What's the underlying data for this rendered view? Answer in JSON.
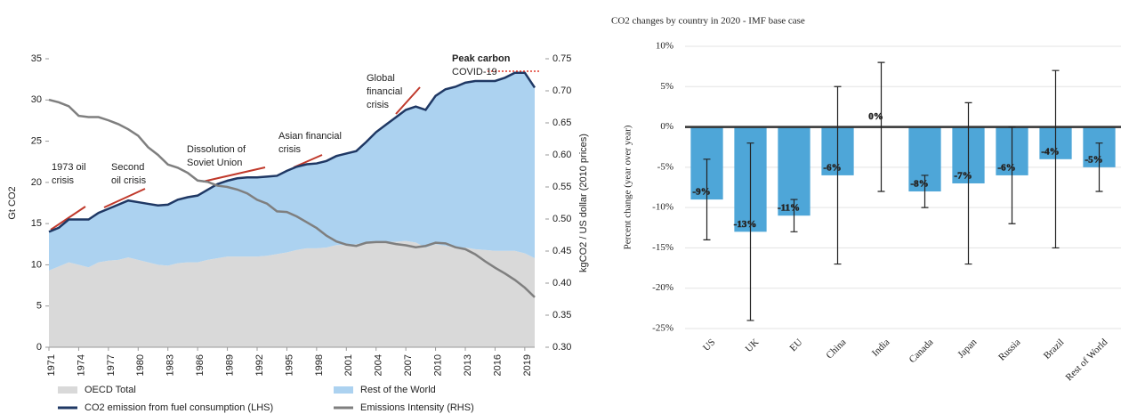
{
  "chart_data": [
    {
      "type": "area",
      "ylabel": "Gt CO2",
      "y2label": "kgCO2 / US dollar (2010 prices)",
      "categories": [
        "1971",
        null,
        null,
        "1974",
        null,
        null,
        "1977",
        null,
        null,
        "1980",
        null,
        null,
        "1983",
        null,
        null,
        "1986",
        null,
        null,
        "1989",
        null,
        null,
        "1992",
        null,
        null,
        "1995",
        null,
        null,
        "1998",
        null,
        null,
        "2001",
        null,
        null,
        "2004",
        null,
        null,
        "2007",
        null,
        null,
        "2010",
        null,
        null,
        "2013",
        null,
        null,
        "2016",
        null,
        null,
        "2019",
        null
      ],
      "ylim": [
        0,
        35
      ],
      "yticks": [
        0,
        5,
        10,
        15,
        20,
        25,
        30,
        35
      ],
      "y2lim": [
        0.3,
        0.75
      ],
      "y2ticks": [
        {
          "value": 0.3,
          "label": "0.30"
        },
        0.35,
        {
          "value": 0.4,
          "label": "0.40"
        },
        0.45,
        {
          "value": 0.5,
          "label": "0.50"
        },
        0.55,
        {
          "value": 0.6,
          "label": "0.60"
        },
        0.65,
        {
          "value": 0.7,
          "label": "0.70"
        },
        0.75
      ],
      "series": [
        {
          "name": "OECD Total",
          "kind": "area",
          "color": "#d9d9d9",
          "values": [
            9.3,
            9.8,
            10.3,
            10.0,
            9.7,
            10.3,
            10.5,
            10.6,
            10.9,
            10.6,
            10.3,
            10.0,
            9.9,
            10.2,
            10.3,
            10.3,
            10.6,
            10.8,
            11.0,
            11.0,
            11.0,
            11.0,
            11.1,
            11.3,
            11.5,
            11.8,
            12.0,
            12.0,
            12.1,
            12.4,
            12.4,
            12.5,
            12.7,
            12.8,
            12.8,
            12.8,
            12.9,
            12.7,
            12.1,
            12.5,
            12.3,
            12.1,
            12.1,
            11.9,
            11.8,
            11.7,
            11.7,
            11.7,
            11.4,
            10.8
          ]
        },
        {
          "name": "Rest of the World",
          "kind": "area",
          "color": "#acd2f0",
          "values": [
            4.7,
            4.7,
            5.2,
            5.5,
            5.8,
            6.0,
            6.3,
            6.7,
            6.9,
            7.0,
            7.1,
            7.2,
            7.4,
            7.7,
            7.9,
            8.1,
            8.5,
            9.0,
            9.2,
            9.5,
            9.6,
            9.6,
            9.6,
            9.5,
            9.9,
            10.1,
            10.2,
            10.3,
            10.5,
            10.8,
            11.1,
            11.3,
            12.2,
            13.3,
            14.2,
            15.1,
            15.9,
            16.5,
            16.7,
            18.0,
            19.0,
            19.5,
            20.0,
            20.4,
            20.5,
            20.6,
            21.0,
            21.6,
            21.9,
            20.7
          ]
        },
        {
          "name": "CO2 emission from fuel consumption (LHS)",
          "kind": "line",
          "color": "#1f3864",
          "values": [
            14,
            14.5,
            15.5,
            15.5,
            15.5,
            16.3,
            16.8,
            17.3,
            17.8,
            17.6,
            17.4,
            17.2,
            17.3,
            17.9,
            18.2,
            18.4,
            19.1,
            19.8,
            20.2,
            20.5,
            20.6,
            20.6,
            20.7,
            20.8,
            21.4,
            21.9,
            22.2,
            22.3,
            22.6,
            23.2,
            23.5,
            23.8,
            24.9,
            26.1,
            27.0,
            27.9,
            28.8,
            29.2,
            28.8,
            30.5,
            31.3,
            31.6,
            32.1,
            32.3,
            32.3,
            32.3,
            32.7,
            33.3,
            33.3,
            31.5
          ]
        },
        {
          "name": "Emissions Intensity (RHS)",
          "kind": "line",
          "axis": "y2",
          "color": "#7f7f7f",
          "values": [
            0.686,
            0.682,
            0.676,
            0.661,
            0.659,
            0.659,
            0.654,
            0.648,
            0.64,
            0.63,
            0.612,
            0.6,
            0.585,
            0.58,
            0.572,
            0.56,
            0.558,
            0.552,
            0.55,
            0.546,
            0.54,
            0.53,
            0.524,
            0.512,
            0.511,
            0.504,
            0.495,
            0.486,
            0.474,
            0.465,
            0.46,
            0.458,
            0.463,
            0.464,
            0.464,
            0.461,
            0.459,
            0.456,
            0.458,
            0.463,
            0.462,
            0.456,
            0.453,
            0.445,
            0.434,
            0.424,
            0.415,
            0.405,
            0.393,
            0.378
          ]
        }
      ],
      "annotations": [
        {
          "lines": [
            "1973 oil",
            "crisis"
          ]
        },
        {
          "lines": [
            "Second",
            "oil crisis"
          ]
        },
        {
          "lines": [
            "Dissolution of",
            "Soviet  Union"
          ]
        },
        {
          "lines": [
            "Asian financial",
            "crisis"
          ]
        },
        {
          "lines": [
            "Global",
            "financial",
            "crisis"
          ]
        },
        {
          "lines": [
            "Peak carbon"
          ]
        },
        {
          "lines": [
            "COVID-19"
          ]
        }
      ]
    },
    {
      "type": "bar",
      "title": "CO2 changes by country in 2020 - IMF base case",
      "ylabel": "Percent change (year over year)",
      "categories": [
        "US",
        "UK",
        "EU",
        "China",
        "India",
        "Canada",
        "Japan",
        "Russia",
        "Brazil",
        "Rest of World"
      ],
      "values": [
        -9,
        -13,
        -11,
        -6,
        0,
        -8,
        -7,
        -6,
        -4,
        -5
      ],
      "value_labels": [
        "-9%",
        "-13%",
        "-11%",
        "-6%",
        "0%",
        "-8%",
        "-7%",
        "-6%",
        "-4%",
        "-5%"
      ],
      "error_low": [
        -14,
        -24,
        -13,
        -17,
        -8,
        -10,
        -17,
        -12,
        -15,
        -8
      ],
      "error_high": [
        -4,
        -2,
        -9,
        5,
        8,
        -6,
        3,
        0,
        7,
        -2
      ],
      "color": "#4ea6d8",
      "ylim": [
        -25,
        10
      ],
      "yticks": [
        {
          "value": -25,
          "label": "-25%"
        },
        {
          "value": -20,
          "label": "-20%"
        },
        {
          "value": -15,
          "label": "-15%"
        },
        {
          "value": -10,
          "label": "-10%"
        },
        {
          "value": -5,
          "label": "-5%"
        },
        {
          "value": 0,
          "label": "0%"
        },
        {
          "value": 5,
          "label": "5%"
        },
        {
          "value": 10,
          "label": "10%"
        }
      ],
      "grid": true
    }
  ]
}
